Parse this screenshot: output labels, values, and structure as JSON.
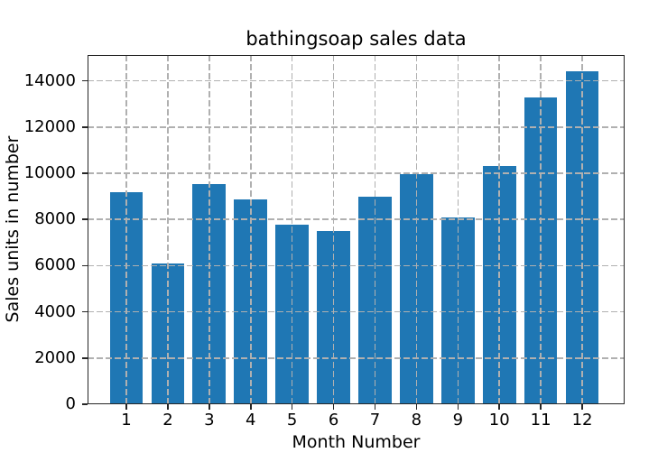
{
  "chart_data": {
    "type": "bar",
    "title": "bathingsoap sales data",
    "xlabel": "Month Number",
    "ylabel": "Sales units in number",
    "categories": [
      "1",
      "2",
      "3",
      "4",
      "5",
      "6",
      "7",
      "8",
      "9",
      "10",
      "11",
      "12"
    ],
    "values": [
      9200,
      6100,
      9550,
      8870,
      7760,
      7490,
      8980,
      9960,
      8100,
      10300,
      13300,
      14400
    ],
    "yticks": [
      0,
      2000,
      4000,
      6000,
      8000,
      10000,
      12000,
      14000
    ],
    "ylim": [
      0,
      15120
    ],
    "xlim": [
      0.063,
      13.023
    ],
    "bar_width_units": 0.8,
    "grid": true,
    "grid_style": "dashed",
    "grid_on_top_of_bars": true,
    "legend": "none",
    "colors": {
      "bar": "#1f77b4",
      "grid": "#b0b0b0",
      "spine": "#262626",
      "text": "#000000",
      "background": "#ffffff"
    }
  }
}
